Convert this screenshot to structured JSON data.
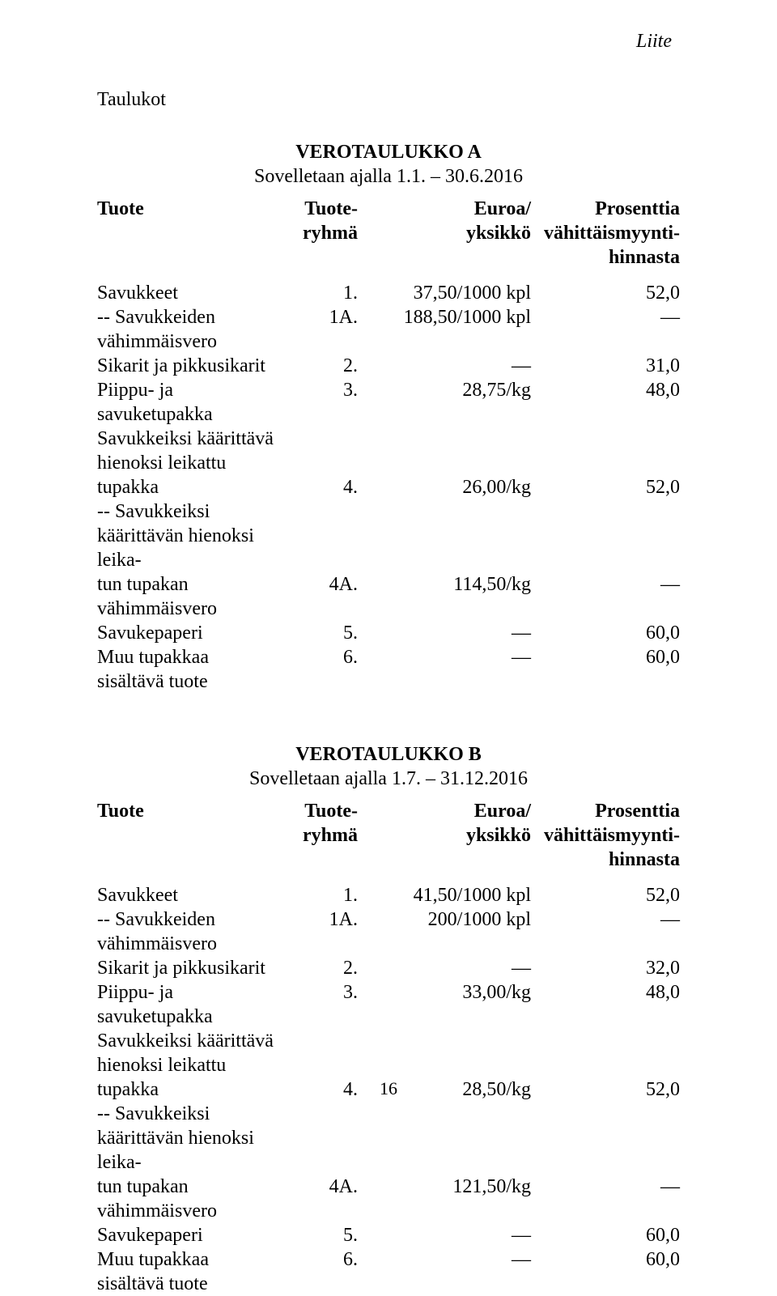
{
  "header": {
    "liite": "Liite",
    "taulukot": "Taulukot"
  },
  "tables": {
    "a": {
      "title": "VEROTAULUKKO A",
      "subtitle": "Sovelletaan ajalla 1.1. – 30.6.2016",
      "columns": {
        "tuote": "Tuote",
        "ryhma1": "Tuote-",
        "ryhma2": "ryhmä",
        "euroa1": "Euroa/",
        "euroa2": "yksikkö",
        "pros1": "Prosenttia",
        "pros2": "vähittäismyynti-",
        "pros3": "hinnasta"
      },
      "rows": [
        {
          "tuote": "Savukkeet",
          "ryhma": "1.",
          "euroa": "37,50/1000 kpl",
          "pros": "52,0"
        },
        {
          "tuote": "-- Savukkeiden vähimmäisvero",
          "ryhma": "1A.",
          "euroa": "188,50/1000 kpl",
          "pros": "—"
        },
        {
          "tuote": "Sikarit ja pikkusikarit",
          "ryhma": "2.",
          "euroa": "—",
          "pros": "31,0"
        },
        {
          "tuote": "Piippu- ja savuketupakka",
          "ryhma": "3.",
          "euroa": "28,75/kg",
          "pros": "48,0"
        },
        {
          "tuote": "Savukkeiksi käärittävä hienoksi leikattu",
          "ryhma": "",
          "euroa": "",
          "pros": ""
        },
        {
          "tuote": "tupakka",
          "ryhma": "4.",
          "euroa": "26,00/kg",
          "pros": "52,0"
        },
        {
          "tuote": "-- Savukkeiksi käärittävän hienoksi leika-",
          "ryhma": "",
          "euroa": "",
          "pros": ""
        },
        {
          "tuote": "tun tupakan vähimmäisvero",
          "ryhma": "4A.",
          "euroa": "114,50/kg",
          "pros": "—"
        },
        {
          "tuote": "Savukepaperi",
          "ryhma": "5.",
          "euroa": "—",
          "pros": "60,0"
        },
        {
          "tuote": "Muu tupakkaa sisältävä tuote",
          "ryhma": "6.",
          "euroa": "—",
          "pros": "60,0"
        }
      ]
    },
    "b": {
      "title": "VEROTAULUKKO B",
      "subtitle": "Sovelletaan ajalla 1.7. – 31.12.2016",
      "columns": {
        "tuote": "Tuote",
        "ryhma1": "Tuote-",
        "ryhma2": "ryhmä",
        "euroa1": "Euroa/",
        "euroa2": "yksikkö",
        "pros1": "Prosenttia",
        "pros2": "vähittäismyynti-",
        "pros3": "hinnasta"
      },
      "rows": [
        {
          "tuote": "Savukkeet",
          "ryhma": "1.",
          "euroa": "41,50/1000 kpl",
          "pros": "52,0"
        },
        {
          "tuote": "-- Savukkeiden vähimmäisvero",
          "ryhma": "1A.",
          "euroa": "200/1000 kpl",
          "pros": "—"
        },
        {
          "tuote": "Sikarit ja pikkusikarit",
          "ryhma": "2.",
          "euroa": "—",
          "pros": "32,0"
        },
        {
          "tuote": "Piippu- ja savuketupakka",
          "ryhma": "3.",
          "euroa": "33,00/kg",
          "pros": "48,0"
        },
        {
          "tuote": "Savukkeiksi käärittävä hienoksi leikattu",
          "ryhma": "",
          "euroa": "",
          "pros": ""
        },
        {
          "tuote": "tupakka",
          "ryhma": "4.",
          "euroa": "28,50/kg",
          "pros": "52,0"
        },
        {
          "tuote": "-- Savukkeiksi käärittävän hienoksi leika-",
          "ryhma": "",
          "euroa": "",
          "pros": ""
        },
        {
          "tuote": "tun tupakan vähimmäisvero",
          "ryhma": "4A.",
          "euroa": "121,50/kg",
          "pros": "—"
        },
        {
          "tuote": "Savukepaperi",
          "ryhma": "5.",
          "euroa": "—",
          "pros": "60,0"
        },
        {
          "tuote": "Muu tupakkaa sisältävä tuote",
          "ryhma": "6.",
          "euroa": "—",
          "pros": "60,0"
        }
      ]
    }
  },
  "page_number": "16",
  "style": {
    "font_family": "Times New Roman",
    "font_size_pt": 18,
    "text_color": "#000000",
    "background_color": "#ffffff"
  }
}
